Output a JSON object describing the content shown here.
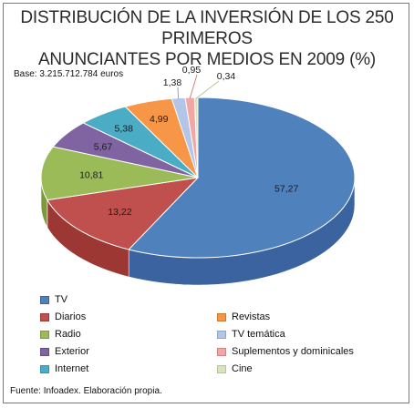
{
  "chart_data": {
    "type": "pie",
    "title_line1": "DISTRIBUCIÓN DE LA INVERSIÓN DE LOS 250 PRIMEROS",
    "title_line2": "ANUNCIANTES POR MEDIOS EN 2009 (%)",
    "base_note": "Base: 3.215.712.784 euros",
    "source_note": "Fuente: Infoadex. Elaboración propia.",
    "categories": [
      "TV",
      "Diarios",
      "Radio",
      "Exterior",
      "Internet",
      "Revistas",
      "TV temática",
      "Suplementos y dominicales",
      "Cine"
    ],
    "values": [
      57.27,
      13.22,
      10.81,
      5.67,
      5.38,
      4.99,
      1.38,
      0.95,
      0.34
    ],
    "value_labels": [
      "57,27",
      "13,22",
      "10,81",
      "5,67",
      "5,38",
      "4,99",
      "1,38",
      "0,95",
      "0,34"
    ],
    "colors": [
      "#4f81bd",
      "#c0504d",
      "#9bbb59",
      "#8064a2",
      "#4bacc6",
      "#f79646",
      "#b3c6e7",
      "#f2a7a5",
      "#d7e4bd"
    ],
    "side_colors": [
      "#3a63a0",
      "#9c3734",
      "#7b9a3e",
      "#634d85",
      "#3690a8",
      "#d0782e",
      "#8fa5ca",
      "#cf8482",
      "#b4c596"
    ],
    "legend_placement": "bottom"
  }
}
